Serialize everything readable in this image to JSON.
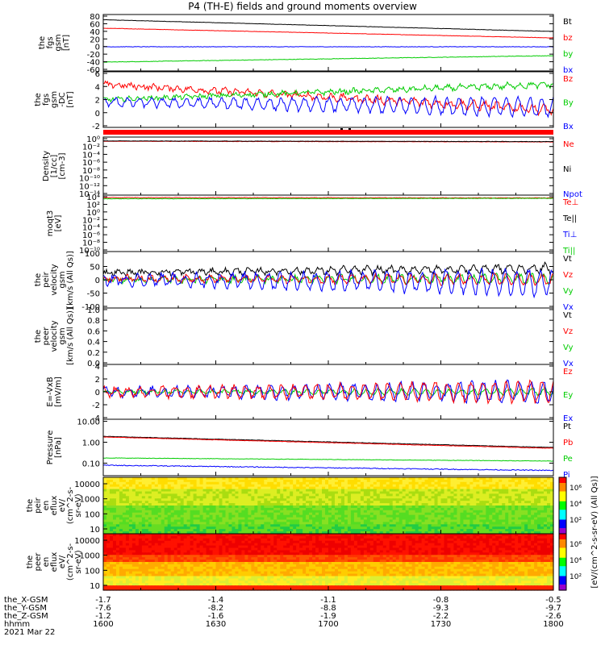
{
  "title": "P4 (TH-E) fields and ground moments overview",
  "panels": [
    {
      "id": "fgs",
      "ylabel": [
        "the",
        "fgs",
        "gsm",
        "[nT]"
      ],
      "ylim": [
        -60,
        80
      ],
      "ticks": [
        "80",
        "60",
        "40",
        "20",
        "0",
        "-20",
        "-40",
        "-60"
      ],
      "legend": [
        {
          "text": "Bt",
          "color": "#000000"
        },
        {
          "text": "bz",
          "color": "#ff0000"
        },
        {
          "text": "by",
          "color": "#00cc00"
        },
        {
          "text": "bx",
          "color": "#0000ff"
        }
      ],
      "series": [
        {
          "name": "Bt",
          "color": "#000000",
          "start": 67,
          "end": 38,
          "noise": 0.4,
          "osc": 0
        },
        {
          "name": "bz",
          "color": "#ff0000",
          "start": 46,
          "end": 22,
          "noise": 0.4,
          "osc": 0
        },
        {
          "name": "by",
          "color": "#00cc00",
          "start": -38,
          "end": -22,
          "noise": 0.6,
          "osc": 0
        },
        {
          "name": "bx",
          "color": "#0000ff",
          "start": 0,
          "end": 0,
          "noise": 0.5,
          "osc": 0
        }
      ]
    },
    {
      "id": "fgs_dc",
      "ylabel": [
        "the",
        "fgs",
        "gsm",
        "-DC",
        "[nT]"
      ],
      "ylim": [
        -3,
        8
      ],
      "ticks": [
        "6",
        "4",
        "2",
        "0",
        "-2"
      ],
      "legend": [
        {
          "text": "Bz",
          "color": "#ff0000"
        },
        {
          "text": "By",
          "color": "#00cc00"
        },
        {
          "text": "Bx",
          "color": "#0000ff"
        }
      ],
      "series": [
        {
          "name": "Bz",
          "color": "#ff0000",
          "start": 5.5,
          "end": 0.5,
          "noise": 0.5,
          "osc": 0.5
        },
        {
          "name": "By",
          "color": "#00cc00",
          "start": 2.5,
          "end": 5.5,
          "noise": 0.4,
          "osc": 0.3
        },
        {
          "name": "Bx",
          "color": "#0000ff",
          "start": 2.0,
          "end": 1.0,
          "noise": 0.4,
          "osc": 1.3
        }
      ]
    },
    {
      "id": "density",
      "ylabel": [
        "Density",
        "[1/cc]",
        "[cm-3]"
      ],
      "log": true,
      "ylim": [
        -16,
        2
      ],
      "ticks": [
        "10⁰",
        "10⁻²",
        "10⁻⁴",
        "10⁻⁶",
        "10⁻⁸",
        "10⁻¹⁰",
        "10⁻¹²",
        "10⁻¹⁴"
      ],
      "legend": [
        {
          "text": "Ne",
          "color": "#ff0000"
        },
        {
          "text": "Ni",
          "color": "#000000"
        },
        {
          "text": "Npot",
          "color": "#0000ff"
        }
      ],
      "series": [
        {
          "name": "Ne",
          "color": "#ff0000",
          "start": 0.7,
          "end": 0.5,
          "noise": 0.05,
          "osc": 0
        },
        {
          "name": "Ni",
          "color": "#000000",
          "start": 0.8,
          "end": 0.6,
          "noise": 0.05,
          "osc": 0
        }
      ]
    },
    {
      "id": "temp",
      "ylabel": [
        "moqt3",
        "[eV]"
      ],
      "log": true,
      "ylim": [
        -10,
        4
      ],
      "ticks": [
        "10⁴",
        "10²",
        "10⁰",
        "10⁻²",
        "10⁻⁴",
        "10⁻⁶",
        "10⁻⁸",
        "10⁻¹⁰"
      ],
      "legend": [
        {
          "text": "Te⊥",
          "color": "#ff0000"
        },
        {
          "text": "Te||",
          "color": "#000000"
        },
        {
          "text": "Ti⊥",
          "color": "#0000ff"
        },
        {
          "text": "Ti||",
          "color": "#00cc00"
        }
      ],
      "series": [
        {
          "name": "Te",
          "color": "#ff0000",
          "start": 3.4,
          "end": 3.3,
          "noise": 0.05,
          "osc": 0
        },
        {
          "name": "Ti",
          "color": "#00cc00",
          "start": 3.1,
          "end": 3.2,
          "noise": 0.05,
          "osc": 0
        }
      ]
    },
    {
      "id": "vel_i",
      "ylabel": [
        "the",
        "peir",
        "velocity",
        "gsm",
        "[km/s (All Qs)]"
      ],
      "ylim": [
        -100,
        100
      ],
      "ticks": [
        "100",
        "50",
        "0",
        "-50",
        "-100"
      ],
      "legend": [
        {
          "text": "Vt",
          "color": "#000000"
        },
        {
          "text": "Vz",
          "color": "#ff0000"
        },
        {
          "text": "Vy",
          "color": "#00cc00"
        },
        {
          "text": "Vx",
          "color": "#0000ff"
        }
      ],
      "series": [
        {
          "name": "Vt",
          "color": "#000000",
          "start": 25,
          "end": 40,
          "noise": 8,
          "osc": 10
        },
        {
          "name": "Vy",
          "color": "#00cc00",
          "start": 0,
          "end": 5,
          "noise": 8,
          "osc": 10
        },
        {
          "name": "Vz",
          "color": "#ff0000",
          "start": 5,
          "end": 0,
          "noise": 8,
          "osc": 12
        },
        {
          "name": "Vx",
          "color": "#0000ff",
          "start": 0,
          "end": -10,
          "noise": 10,
          "osc": 30
        }
      ]
    },
    {
      "id": "vel_e",
      "ylabel": [
        "the",
        "peer",
        "velocity",
        "gsm",
        "[km/s (All Qs)]"
      ],
      "ylim": [
        0,
        1
      ],
      "ticks": [
        "1.0",
        "0.8",
        "0.6",
        "0.4",
        "0.2",
        "0.0"
      ],
      "legend": [
        {
          "text": "Vt",
          "color": "#000000"
        },
        {
          "text": "Vz",
          "color": "#ff0000"
        },
        {
          "text": "Vy",
          "color": "#00cc00"
        },
        {
          "text": "Vx",
          "color": "#0000ff"
        }
      ],
      "series": []
    },
    {
      "id": "efield",
      "ylabel": [
        "E=-VxB",
        "[mV/m]"
      ],
      "ylim": [
        -4,
        4
      ],
      "ticks": [
        "4",
        "2",
        "0",
        "-2",
        "-4"
      ],
      "legend": [
        {
          "text": "Ez",
          "color": "#ff0000"
        },
        {
          "text": "Ey",
          "color": "#00cc00"
        },
        {
          "text": "Ex",
          "color": "#0000ff"
        }
      ],
      "series": [
        {
          "name": "Ey",
          "color": "#00cc00",
          "start": 0,
          "end": 0,
          "noise": 0.2,
          "osc": 0.3
        },
        {
          "name": "Ex",
          "color": "#0000ff",
          "start": 0,
          "end": 0,
          "noise": 0.4,
          "osc": 1.0
        },
        {
          "name": "Ez",
          "color": "#ff0000",
          "start": 0,
          "end": 0,
          "noise": 0.4,
          "osc": 1.0
        }
      ]
    },
    {
      "id": "pressure",
      "ylabel": [
        "Pressure",
        "[nPa]"
      ],
      "log": true,
      "ylim": [
        -1.6,
        1.1
      ],
      "ticks": [
        "10.00",
        "1.00",
        "0.10"
      ],
      "tickvals": [
        1,
        0,
        -1
      ],
      "legend": [
        {
          "text": "Pt",
          "color": "#000000"
        },
        {
          "text": "Pb",
          "color": "#ff0000"
        },
        {
          "text": "Pe",
          "color": "#00cc00"
        },
        {
          "text": "Pi",
          "color": "#0000ff"
        }
      ],
      "series": [
        {
          "name": "Pt",
          "color": "#000000",
          "start": 0.28,
          "end": -0.25,
          "noise": 0.01,
          "osc": 0
        },
        {
          "name": "Pb",
          "color": "#ff0000",
          "start": 0.25,
          "end": -0.29,
          "noise": 0.01,
          "osc": 0
        },
        {
          "name": "Pe",
          "color": "#00cc00",
          "start": -0.75,
          "end": -0.9,
          "noise": 0.01,
          "osc": 0
        },
        {
          "name": "Pi",
          "color": "#0000ff",
          "start": -1.1,
          "end": -1.35,
          "noise": 0.02,
          "osc": 0
        }
      ]
    },
    {
      "id": "peir_en",
      "ylabel": [
        "the",
        "peir",
        "en",
        "eflux",
        "eV/",
        "(cm^2-s-",
        "sr-eV)"
      ],
      "spectrogram": "ion",
      "ticks": [
        "10000",
        "1000",
        "100",
        "10"
      ]
    },
    {
      "id": "peer_en",
      "ylabel": [
        "the",
        "peer",
        "en",
        "eflux",
        "eV/",
        "(cm^2-s-",
        "sr-eV)"
      ],
      "spectrogram": "electron",
      "ticks": [
        "10000",
        "1000",
        "100",
        "10"
      ]
    }
  ],
  "colorbar": {
    "label": "[eV/(cm^2-s-sr-eV) (All Qs)]",
    "ticks_ion": [
      "10⁶",
      "10⁴",
      "10²"
    ],
    "ticks_e": [
      "10⁶",
      "10⁴",
      "10²"
    ]
  },
  "xaxis": {
    "rows": [
      {
        "label": "the_X-GSM",
        "values": [
          "-1.7",
          "-1.4",
          "-1.1",
          "-0.8",
          "-0.5"
        ]
      },
      {
        "label": "the_Y-GSM",
        "values": [
          "-7.6",
          "-8.2",
          "-8.8",
          "-9.3",
          "-9.7"
        ]
      },
      {
        "label": "the_Z-GSM",
        "values": [
          "-1.2",
          "-1.6",
          "-1.9",
          "-2.2",
          "-2.6"
        ]
      },
      {
        "label": "hhmm",
        "values": [
          "1600",
          "1630",
          "1700",
          "1730",
          "1800"
        ]
      }
    ],
    "date": "2021 Mar 22"
  }
}
